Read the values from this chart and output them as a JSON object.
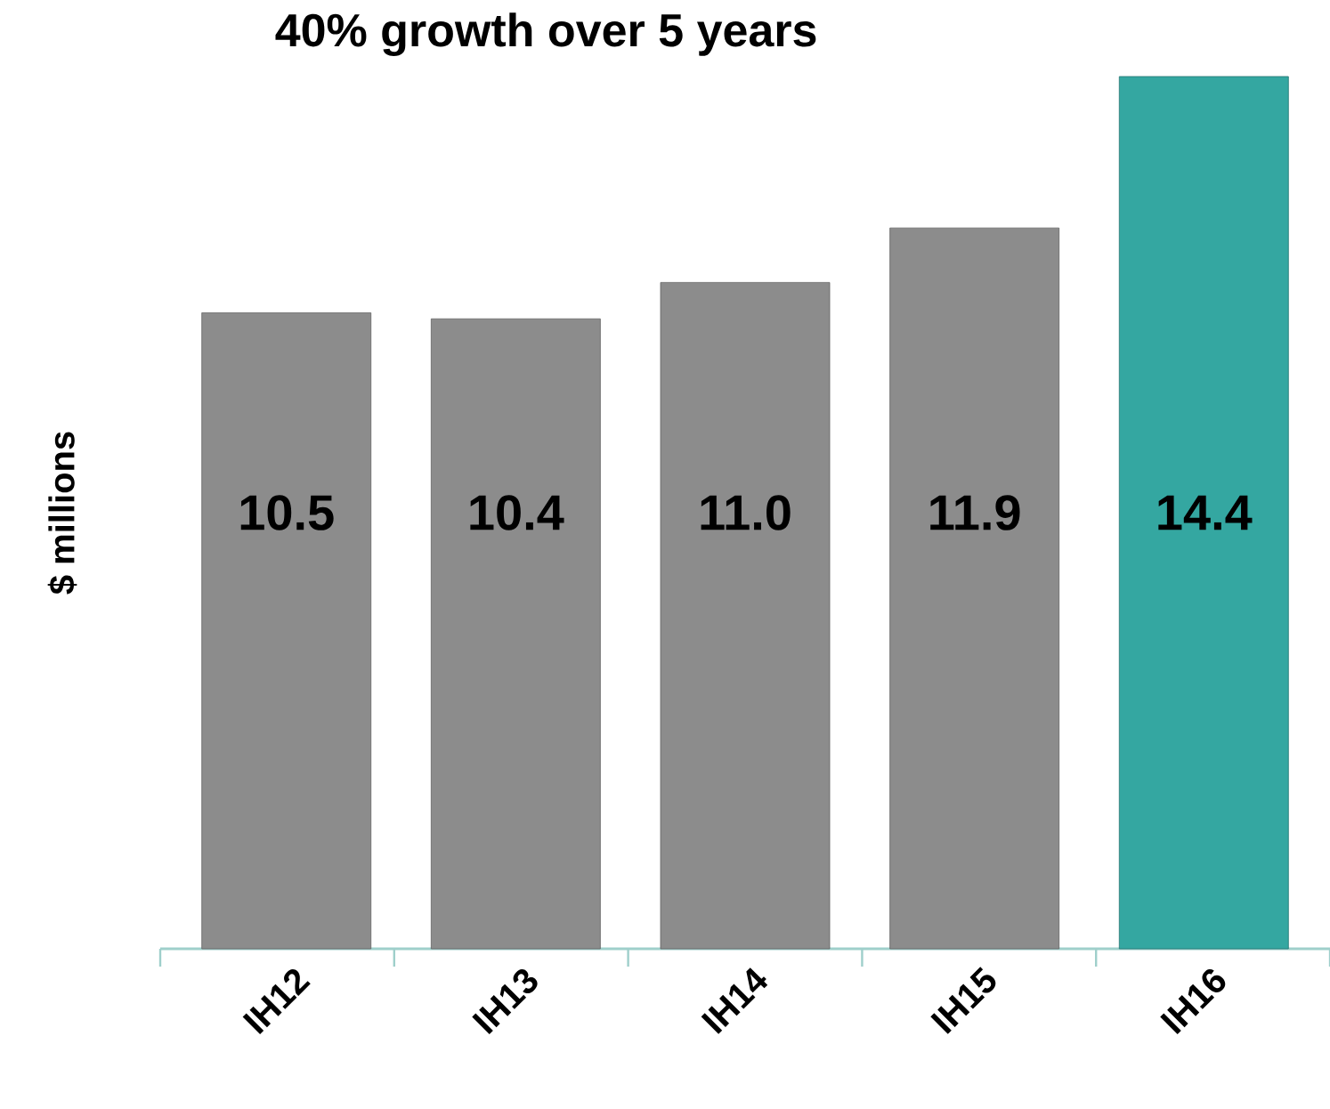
{
  "chart_data": {
    "type": "bar",
    "title": "40%  growth over  5 years",
    "ylabel": "$ millions",
    "categories": [
      "IH12",
      "IH13",
      "IH14",
      "IH15",
      "IH16"
    ],
    "values": [
      10.5,
      10.4,
      11.0,
      11.9,
      14.4
    ],
    "value_labels": [
      "10.5",
      "10.4",
      "11.0",
      "11.9",
      "14.4"
    ],
    "colors": [
      "#8c8c8c",
      "#8c8c8c",
      "#8c8c8c",
      "#8c8c8c",
      "#34a7a1"
    ]
  }
}
